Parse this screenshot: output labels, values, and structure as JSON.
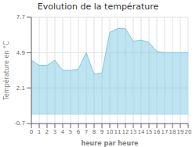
{
  "chart_data": {
    "type": "area",
    "title": "Evolution de la température",
    "xlabel": "heure par heure",
    "ylabel": "Température en °C",
    "x": [
      0,
      1,
      2,
      3,
      4,
      5,
      6,
      7,
      8,
      9,
      10,
      11,
      12,
      13,
      14,
      15,
      16,
      17,
      18,
      19,
      20
    ],
    "values": [
      4.3,
      3.9,
      3.9,
      4.3,
      3.5,
      3.5,
      3.6,
      4.9,
      3.2,
      3.3,
      6.5,
      6.8,
      6.8,
      5.8,
      5.9,
      5.7,
      5.0,
      4.9,
      4.9,
      4.9,
      4.9
    ],
    "color": "#7ec8e3",
    "xlim": [
      0,
      20
    ],
    "xticks": [
      0,
      1,
      2,
      3,
      4,
      5,
      6,
      7,
      8,
      9,
      10,
      11,
      12,
      13,
      14,
      15,
      16,
      17,
      18,
      19,
      20
    ],
    "ylim": [
      -0.7,
      7.7
    ],
    "yticks": [
      -0.7,
      2.1,
      4.9,
      7.7
    ],
    "grid": true
  }
}
